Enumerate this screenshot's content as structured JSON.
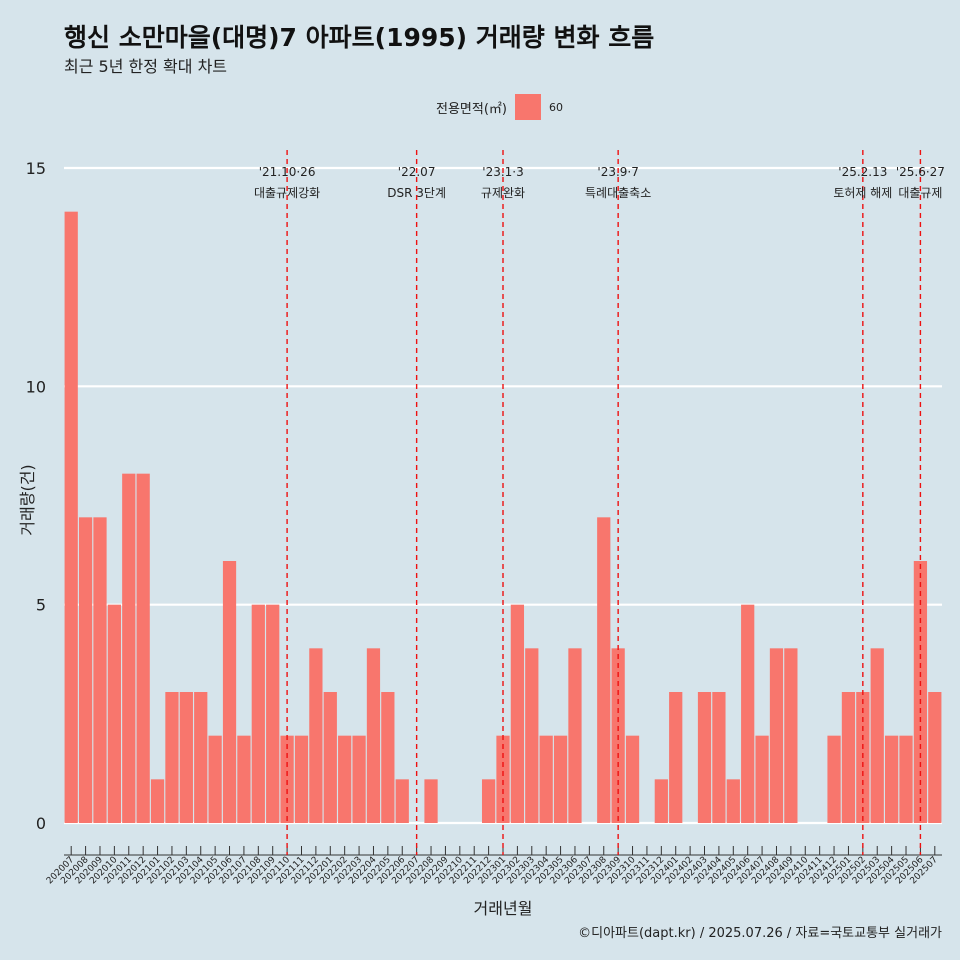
{
  "title": "행신 소만마을(대명)7 아파트(1995) 거래량 변화 흐름",
  "subtitle": "최근 5년 한정 확대 차트",
  "caption": "©디아파트(dapt.kr) / 2025.07.26 / 자료=국토교통부 실거래가",
  "legend": {
    "title": "전용면적(㎡)",
    "item": "60",
    "color": "#f8766d"
  },
  "chart_data": {
    "type": "bar",
    "xlabel": "거래년월",
    "ylabel": "거래량(건)",
    "ylim": [
      0,
      15
    ],
    "yticks": [
      0,
      5,
      10,
      15
    ],
    "grid": true,
    "legend_position": "top",
    "bar_color": "#f8766d",
    "categories": [
      "202007",
      "202008",
      "202009",
      "202010",
      "202011",
      "202012",
      "202101",
      "202102",
      "202103",
      "202104",
      "202105",
      "202106",
      "202107",
      "202108",
      "202109",
      "202110",
      "202111",
      "202112",
      "202201",
      "202202",
      "202203",
      "202204",
      "202205",
      "202206",
      "202207",
      "202208",
      "202209",
      "202210",
      "202211",
      "202212",
      "202301",
      "202302",
      "202303",
      "202304",
      "202305",
      "202306",
      "202307",
      "202308",
      "202309",
      "202310",
      "202311",
      "202312",
      "202401",
      "202402",
      "202403",
      "202404",
      "202405",
      "202406",
      "202407",
      "202408",
      "202409",
      "202410",
      "202411",
      "202412",
      "202501",
      "202502",
      "202503",
      "202504",
      "202505",
      "202506",
      "202507"
    ],
    "values": [
      14,
      7,
      7,
      5,
      8,
      8,
      1,
      3,
      3,
      3,
      2,
      6,
      2,
      5,
      5,
      2,
      2,
      4,
      3,
      2,
      2,
      4,
      3,
      1,
      0,
      1,
      0,
      0,
      0,
      1,
      2,
      5,
      4,
      2,
      2,
      4,
      0,
      7,
      4,
      2,
      0,
      1,
      3,
      0,
      3,
      3,
      1,
      5,
      2,
      4,
      4,
      0,
      0,
      2,
      3,
      3,
      4,
      2,
      2,
      6,
      3
    ],
    "annotations": [
      {
        "category": "202110",
        "line1": "'21.10·26",
        "line2": "대출규제강화"
      },
      {
        "category": "202207",
        "line1": "'22.07",
        "line2": "DSR 3단계"
      },
      {
        "category": "202301",
        "line1": "'23.1·3",
        "line2": "규제완화"
      },
      {
        "category": "202309",
        "line1": "'23.9·7",
        "line2": "특례대출축소"
      },
      {
        "category": "202502",
        "line1": "'25.2.13",
        "line2": "토허제 해제"
      },
      {
        "category": "202506",
        "line1": "'25.6·27",
        "line2": "대출규제"
      }
    ]
  }
}
